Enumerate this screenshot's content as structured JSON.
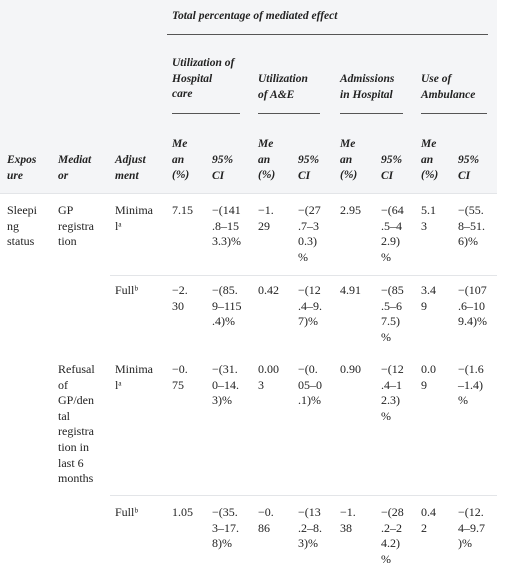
{
  "header": {
    "total_effect": "Total percentage of mediated effect",
    "groups": [
      "Utilization of\nHospital\ncare",
      "Utilization\nof A&E",
      "Admissions\nin Hospital",
      "Use of\nAmbulance"
    ],
    "columns": [
      "Expos\nure",
      "Mediat\nor",
      "Adjust\nment"
    ],
    "mean_label": "Me\nan\n(%)",
    "ci_label": "95%\nCI"
  },
  "rows": [
    {
      "exposure": "Sleepi\nng\nstatus",
      "mediator": "GP\nregistra\ntion",
      "adjustment": "Minima\nlᵃ",
      "values": [
        "7.15",
        "−(141\n.8–15\n3.3)%",
        "−1.\n29",
        "−(27\n.7–3\n0.3)\n%",
        "2.95",
        "−(64\n.5–4\n2.9)\n%",
        "5.1\n3",
        "−(55.\n8–51.\n6)%"
      ]
    },
    {
      "exposure": "",
      "mediator": "",
      "adjustment": "Fullᵇ",
      "values": [
        "−2.\n30",
        "−(85.\n9–115\n.4)%",
        "0.42",
        "−(12\n.4–9.\n7)%",
        "4.91",
        "−(85\n.5–6\n7.5)\n%",
        "3.4\n9",
        "−(107\n.6–10\n9.4)%"
      ]
    },
    {
      "exposure": "",
      "mediator": "Refusal\nof\nGP/den\ntal\nregistra\ntion in\nlast 6\nmonths",
      "adjustment": "Minima\nlᵃ",
      "values": [
        "−0.\n75",
        "−(31.\n0–14.\n3)%",
        "0.00\n3",
        "−(0.\n05–0\n.1)%",
        "0.90",
        "−(12\n.4–1\n2.3)\n%",
        "0.0\n9",
        "−(1.6\n–1.4)\n%"
      ]
    },
    {
      "exposure": "",
      "mediator": "",
      "adjustment": "Fullᵇ",
      "values": [
        "1.05",
        "−(35.\n3–17.\n8)%",
        "−0.\n86",
        "−(13\n.2–8.\n3)%",
        "−1.\n38",
        "−(28\n.2–2\n4.2)\n%",
        "0.4\n2",
        "−(12.\n4–9.7\n)%"
      ]
    }
  ]
}
